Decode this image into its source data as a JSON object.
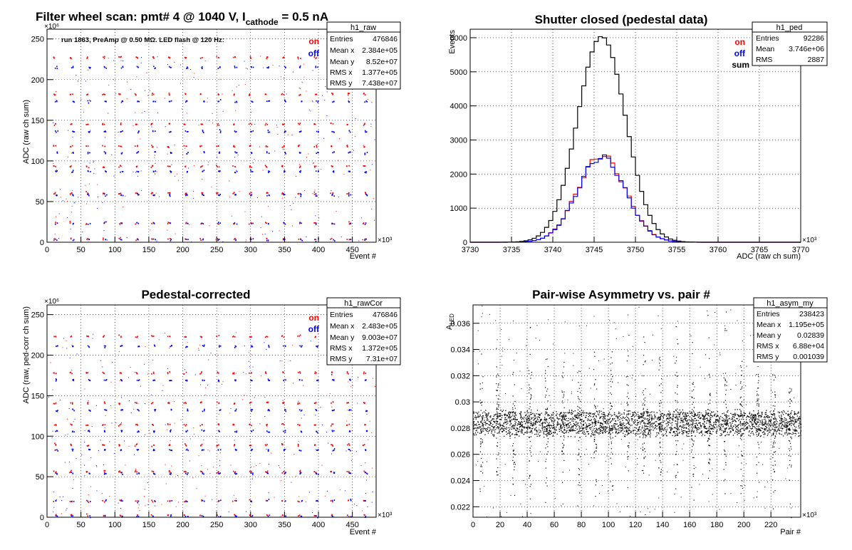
{
  "colors": {
    "on": "#ff0000",
    "off": "#0000ff",
    "sum": "#000000",
    "frame": "#000000",
    "grid": "#000000"
  },
  "chart_data": [
    {
      "id": "raw",
      "type": "scatter",
      "title_main": "Filter wheel scan: pmt#   4 @  1040 V, I",
      "title_sub": "cathode",
      "title_tail": " = 0.5 nA",
      "annotation": "run 1863, PreAmp @ 0.50 MΩ. LED flash @  120 Hz:",
      "xlabel": "Event #",
      "ylabel": "ADC (raw ch sum)",
      "x_multiplier": "×10³",
      "y_multiplier": "×10⁶",
      "xlim": [
        0,
        485
      ],
      "ylim": [
        0,
        262
      ],
      "xticks": [
        0,
        50,
        100,
        150,
        200,
        250,
        300,
        350,
        400,
        450
      ],
      "yticks": [
        0,
        50,
        100,
        150,
        200,
        250
      ],
      "legend": [
        {
          "name": "on",
          "color": "#ff0000"
        },
        {
          "name": "off",
          "color": "#0000ff"
        }
      ],
      "grid": true,
      "stats": {
        "name": "h1_raw",
        "rows": [
          {
            "label": "Entries",
            "value": "476846"
          },
          {
            "label": "Mean x",
            "value": "2.384e+05"
          },
          {
            "label": "Mean y",
            "value": "8.52e+07"
          },
          {
            "label": "RMS x",
            "value": "1.377e+05"
          },
          {
            "label": "RMS y",
            "value": "7.438e+07"
          }
        ]
      },
      "series": [
        {
          "name": "on",
          "color": "#ff0000",
          "levels": [
            227,
            182,
            145,
            118,
            93,
            60,
            23,
            4
          ]
        },
        {
          "name": "off",
          "color": "#0000ff",
          "levels": [
            215,
            173,
            136,
            110,
            87,
            58,
            23,
            3
          ]
        }
      ],
      "period_k": 12,
      "segments_k": [
        12,
        36,
        60,
        84,
        108,
        132,
        156,
        180,
        204,
        228,
        252,
        276,
        300,
        324,
        348,
        372,
        396,
        420,
        444,
        468
      ]
    },
    {
      "id": "ped",
      "type": "line",
      "title": "Shutter closed (pedestal data)",
      "xlabel": "ADC (raw ch sum)",
      "ylabel": "Events",
      "x_multiplier": "×10³",
      "xlim": [
        3730,
        3770
      ],
      "ylim": [
        0,
        6250
      ],
      "xticks": [
        3730,
        3735,
        3740,
        3745,
        3750,
        3755,
        3760,
        3765,
        3770
      ],
      "yticks": [
        0,
        1000,
        2000,
        3000,
        4000,
        5000,
        6000
      ],
      "legend": [
        {
          "name": "on",
          "color": "#ff0000"
        },
        {
          "name": "off",
          "color": "#0000ff"
        },
        {
          "name": "sum",
          "color": "#000000"
        }
      ],
      "grid": true,
      "stats": {
        "name": "h1_ped",
        "rows": [
          {
            "label": "Entries",
            "value": "92286"
          },
          {
            "label": "Mean",
            "value": "3.746e+06"
          },
          {
            "label": "RMS",
            "value": "2887"
          }
        ]
      },
      "bin_width": 0.5,
      "series": [
        {
          "name": "sum",
          "color": "#000000",
          "peak": 6040,
          "mean": 3745.9,
          "sigma": 2.9
        },
        {
          "name": "on",
          "color": "#ff0000",
          "peak": 2540,
          "mean": 3745.9,
          "sigma": 2.9
        },
        {
          "name": "off",
          "color": "#0000ff",
          "peak": 2500,
          "mean": 3745.9,
          "sigma": 2.9
        }
      ]
    },
    {
      "id": "cor",
      "type": "scatter",
      "title": "Pedestal-corrected",
      "xlabel": "Event #",
      "ylabel": "ADC (raw, ped-corr ch sum)",
      "x_multiplier": "×10³",
      "y_multiplier": "×10⁶",
      "xlim": [
        0,
        485
      ],
      "ylim": [
        0,
        262
      ],
      "xticks": [
        0,
        50,
        100,
        150,
        200,
        250,
        300,
        350,
        400,
        450
      ],
      "yticks": [
        0,
        50,
        100,
        150,
        200,
        250
      ],
      "legend": [
        {
          "name": "on",
          "color": "#ff0000"
        },
        {
          "name": "off",
          "color": "#0000ff"
        }
      ],
      "grid": true,
      "stats": {
        "name": "h1_rawCor",
        "rows": [
          {
            "label": "Entries",
            "value": "476846"
          },
          {
            "label": "Mean x",
            "value": "2.483e+05"
          },
          {
            "label": "Mean y",
            "value": "9.003e+07"
          },
          {
            "label": "RMS x",
            "value": "1.372e+05"
          },
          {
            "label": "RMS y",
            "value": "7.31e+07"
          }
        ]
      },
      "series": [
        {
          "name": "on",
          "color": "#ff0000",
          "levels": [
            223,
            178,
            141,
            114,
            89,
            56,
            20,
            2
          ]
        },
        {
          "name": "off",
          "color": "#0000ff",
          "levels": [
            211,
            169,
            132,
            106,
            83,
            54,
            20,
            1
          ]
        }
      ],
      "period_k": 12,
      "segments_k": [
        12,
        36,
        60,
        84,
        108,
        132,
        156,
        180,
        204,
        228,
        252,
        276,
        300,
        324,
        348,
        372,
        396,
        420,
        444,
        468
      ]
    },
    {
      "id": "asym",
      "type": "scatter",
      "title": "Pair-wise Asymmetry vs. pair #",
      "xlabel": "Pair #",
      "ylabel": "A",
      "ylabel_sub": "LED",
      "x_multiplier": "×10³",
      "xlim": [
        0,
        242
      ],
      "ylim": [
        0.0212,
        0.0374
      ],
      "xticks": [
        0,
        20,
        40,
        60,
        80,
        100,
        120,
        140,
        160,
        180,
        200,
        220
      ],
      "yticks": [
        0.022,
        0.024,
        0.026,
        0.028,
        0.03,
        0.032,
        0.034,
        0.036
      ],
      "ytick_labels": [
        "0.022",
        "0.024",
        "0.026",
        "0.028",
        "0.03",
        "0.032",
        "0.034",
        "0.036"
      ],
      "grid": true,
      "stats": {
        "name": "h1_asym_my",
        "rows": [
          {
            "label": "Entries",
            "value": "238423"
          },
          {
            "label": "Mean x",
            "value": "1.195e+05"
          },
          {
            "label": "Mean y",
            "value": "0.02839"
          },
          {
            "label": "RMS x",
            "value": "6.88e+04"
          },
          {
            "label": "RMS y",
            "value": "0.001039"
          }
        ]
      },
      "band_center": 0.0284,
      "band_halfwidth": 0.0011,
      "spikes_k": [
        6,
        18,
        30,
        42,
        54,
        66,
        78,
        90,
        102,
        114,
        126,
        138,
        150,
        162,
        174,
        186,
        198,
        210,
        222,
        234
      ]
    }
  ]
}
